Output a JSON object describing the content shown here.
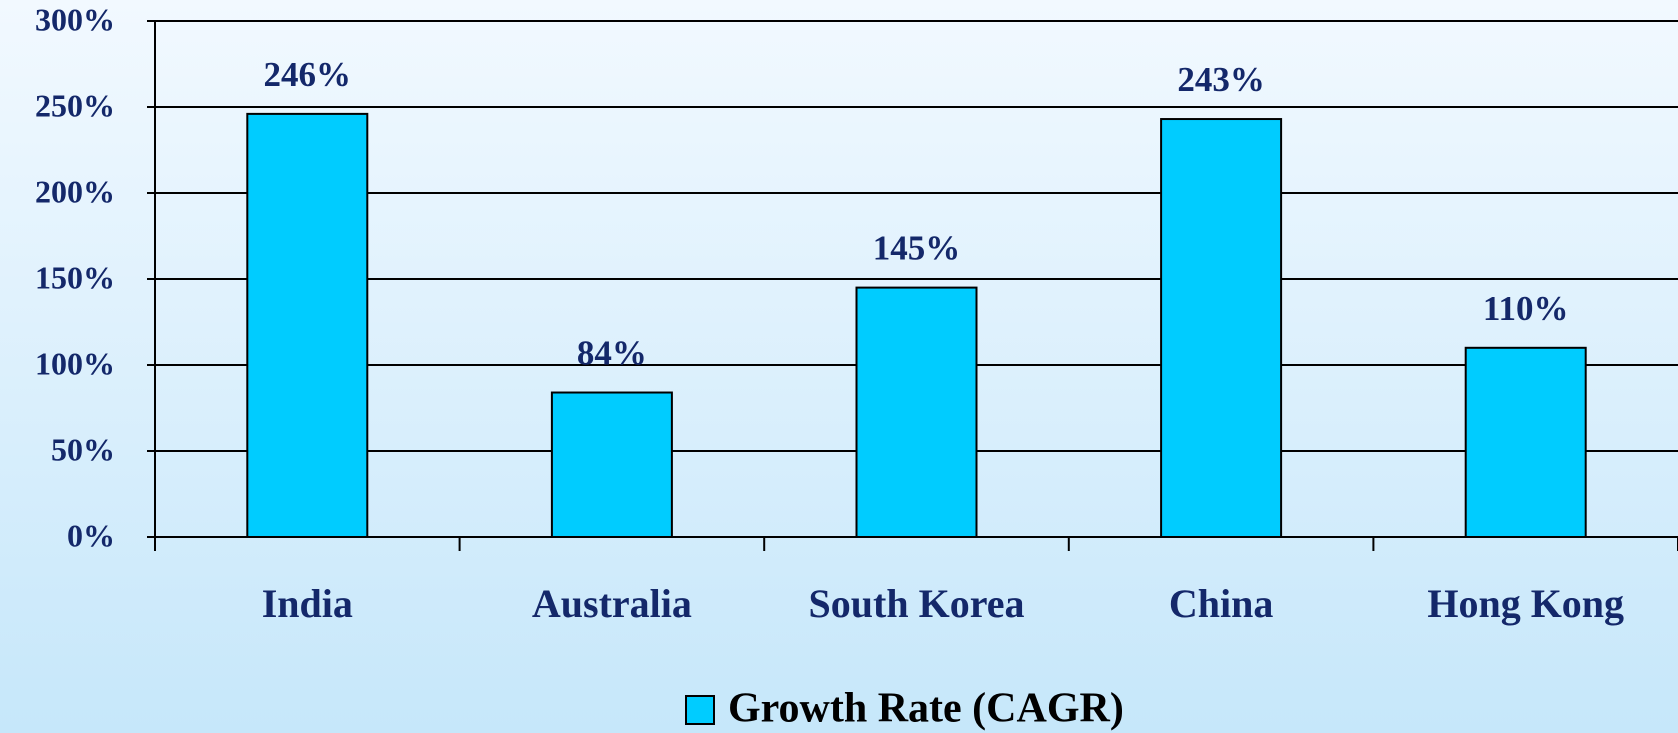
{
  "chart_data": {
    "type": "bar",
    "categories": [
      "India",
      "Australia",
      "South Korea",
      "China",
      "Hong Kong"
    ],
    "series": [
      {
        "name": "Growth Rate (CAGR)",
        "color": "#00ccff",
        "values": [
          246,
          84,
          145,
          243,
          110
        ],
        "value_labels": [
          "246%",
          "84%",
          "145%",
          "243%",
          "110%"
        ]
      }
    ],
    "ylim": [
      0,
      300
    ],
    "yticks": [
      {
        "value": 0,
        "label": "0%"
      },
      {
        "value": 50,
        "label": "50%"
      },
      {
        "value": 100,
        "label": "100%"
      },
      {
        "value": 150,
        "label": "150%"
      },
      {
        "value": 200,
        "label": "200%"
      },
      {
        "value": 250,
        "label": "250%"
      },
      {
        "value": 300,
        "label": "300%"
      }
    ],
    "grid": true,
    "legend": "bottom"
  }
}
